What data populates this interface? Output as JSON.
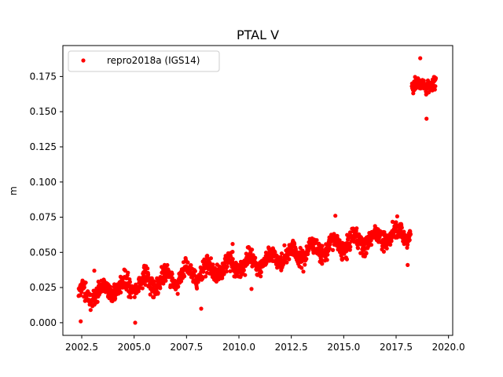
{
  "chart_data": {
    "type": "scatter",
    "title": "PTAL V",
    "xlabel": "",
    "ylabel": "m",
    "xlim": [
      2001.6,
      2020.2
    ],
    "ylim": [
      -0.009,
      0.197
    ],
    "x_ticks": [
      2002.5,
      2005.0,
      2007.5,
      2010.0,
      2012.5,
      2015.0,
      2017.5,
      2020.0
    ],
    "x_tick_labels": [
      "2002.5",
      "2005.0",
      "2007.5",
      "2010.0",
      "2012.5",
      "2015.0",
      "2017.5",
      "2020.0"
    ],
    "y_ticks": [
      0.0,
      0.025,
      0.05,
      0.075,
      0.1,
      0.125,
      0.15,
      0.175
    ],
    "y_tick_labels": [
      "0.000",
      "0.025",
      "0.050",
      "0.075",
      "0.100",
      "0.125",
      "0.150",
      "0.175"
    ],
    "grid": false,
    "legend_position": "top-left",
    "colors": {
      "series": "#ff0000"
    },
    "series": [
      {
        "name": "repro2018a (IGS14)",
        "segments": [
          {
            "x_start": 2002.35,
            "x_end": 2018.2,
            "y_start": 0.019,
            "y_end": 0.065,
            "spread": 0.008,
            "seasonal_amplitude": 0.005
          },
          {
            "x_start": 2018.25,
            "x_end": 2019.4,
            "y_start": 0.168,
            "y_end": 0.17,
            "spread": 0.006,
            "seasonal_amplitude": 0.002
          }
        ],
        "outliers": [
          {
            "x": 2002.45,
            "y": 0.001
          },
          {
            "x": 2005.05,
            "y": 0.0
          },
          {
            "x": 2008.2,
            "y": 0.01
          },
          {
            "x": 2010.6,
            "y": 0.024
          },
          {
            "x": 2014.6,
            "y": 0.076
          },
          {
            "x": 2018.05,
            "y": 0.041
          },
          {
            "x": 2018.65,
            "y": 0.188
          },
          {
            "x": 2018.95,
            "y": 0.145
          },
          {
            "x": 2009.7,
            "y": 0.056
          },
          {
            "x": 2003.1,
            "y": 0.037
          }
        ]
      }
    ]
  }
}
